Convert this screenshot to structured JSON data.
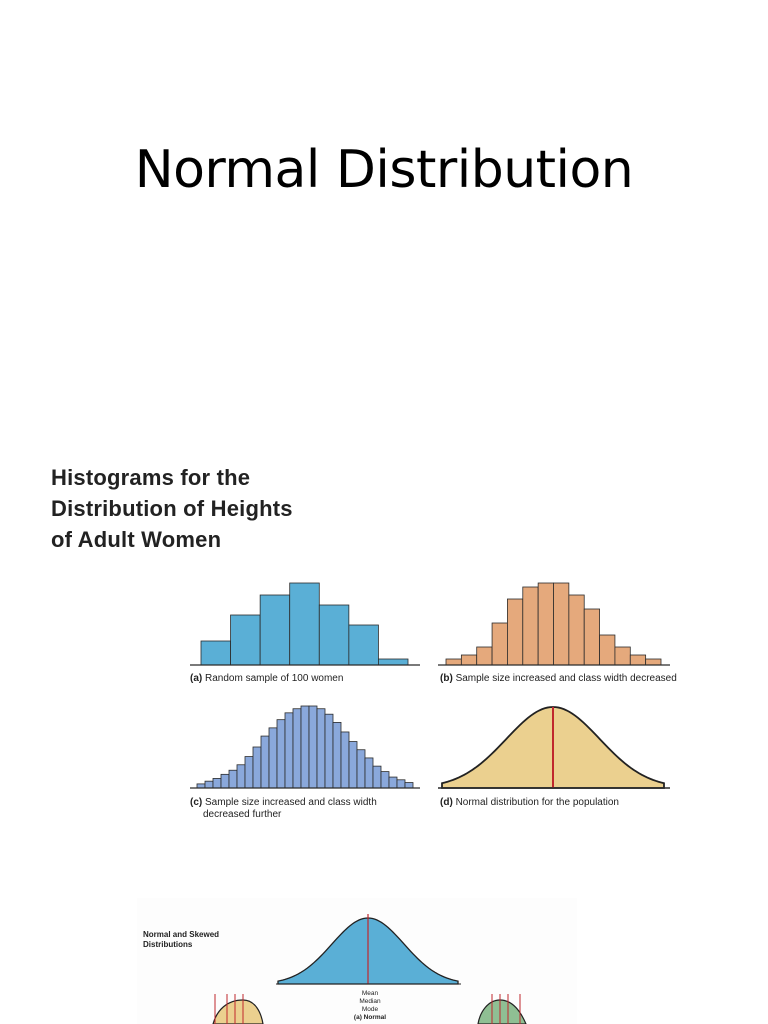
{
  "slide": {
    "title": "Normal Distribution"
  },
  "figure1": {
    "heading_lines": [
      "Histograms for the",
      "Distribution of Heights",
      "of Adult Women"
    ],
    "colors": {
      "a": "#5aafd6",
      "b": "#e5a97c",
      "c": "#8aa8db",
      "d_fill": "#ebd08f",
      "d_line": "#c0272d",
      "stroke": "#2b2b2b"
    }
  },
  "figure2": {
    "heading_lines": [
      "Normal and Skewed",
      "Distributions"
    ],
    "center_labels": [
      "Mean",
      "Median",
      "Mode",
      "(a) Normal"
    ],
    "colors": {
      "normal": "#5aafd6",
      "left": "#ebd08f",
      "right": "#8fbf93",
      "line": "#c0272d"
    }
  },
  "chart_data": [
    {
      "type": "bar",
      "id": "a",
      "caption_tag": "(a)",
      "caption": "Random sample of 100 women",
      "values": [
        12,
        25,
        35,
        41,
        30,
        20,
        3
      ]
    },
    {
      "type": "bar",
      "id": "b",
      "caption_tag": "(b)",
      "caption": "Sample size increased and class width decreased",
      "values": [
        3,
        5,
        9,
        21,
        33,
        39,
        41,
        41,
        35,
        28,
        15,
        9,
        5,
        3
      ]
    },
    {
      "type": "bar",
      "id": "c",
      "caption_tag": "(c)",
      "caption": "Sample size increased and class width",
      "caption_cont": "decreased further",
      "values": [
        3,
        5,
        7,
        10,
        13,
        17,
        23,
        30,
        38,
        44,
        50,
        55,
        58,
        60,
        60,
        58,
        54,
        48,
        41,
        34,
        28,
        22,
        16,
        12,
        8,
        6,
        4
      ]
    },
    {
      "type": "area",
      "id": "d",
      "caption_tag": "(d)",
      "caption": "Normal distribution for the population"
    },
    {
      "type": "area",
      "id": "normal",
      "caption": "(a) Normal"
    }
  ]
}
